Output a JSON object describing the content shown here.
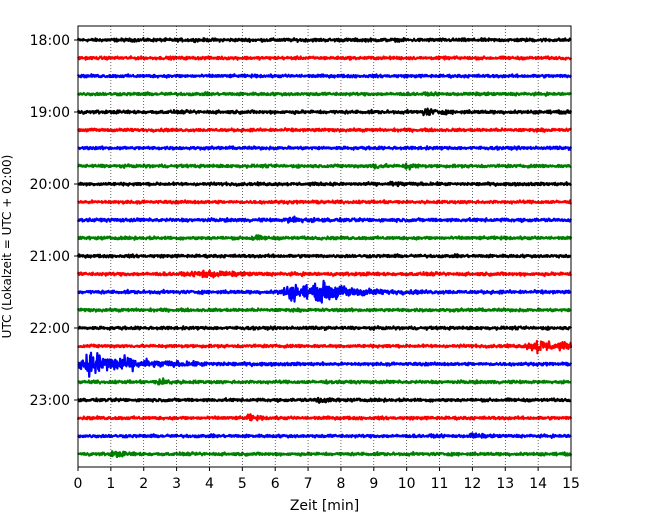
{
  "chart_data": {
    "type": "line",
    "title": "",
    "xlabel": "Zeit  [min]",
    "ylabel": "UTC (Lokalzeit = UTC + 02:00)",
    "xlim": [
      0,
      15
    ],
    "x_ticks": [
      "0",
      "1",
      "2",
      "3",
      "4",
      "5",
      "6",
      "7",
      "8",
      "9",
      "10",
      "11",
      "12",
      "13",
      "14",
      "15"
    ],
    "y_ticks": [
      "18:00",
      "19:00",
      "20:00",
      "21:00",
      "22:00",
      "23:00"
    ],
    "grid": "vertical dotted",
    "trace_interval_min": 15,
    "color_cycle": [
      "#000000",
      "#ff0000",
      "#0000ff",
      "#008000"
    ],
    "series": [
      {
        "start": "18:00",
        "amplitude": 0.22,
        "events": []
      },
      {
        "start": "18:15",
        "amplitude": 0.2,
        "events": []
      },
      {
        "start": "18:30",
        "amplitude": 0.2,
        "events": []
      },
      {
        "start": "18:45",
        "amplitude": 0.2,
        "events": []
      },
      {
        "start": "19:00",
        "amplitude": 0.22,
        "events": [
          {
            "t": 10.6,
            "amp": 0.45,
            "dur": 0.3
          }
        ]
      },
      {
        "start": "19:15",
        "amplitude": 0.2,
        "events": []
      },
      {
        "start": "19:30",
        "amplitude": 0.2,
        "events": []
      },
      {
        "start": "19:45",
        "amplitude": 0.2,
        "events": [
          {
            "t": 9.0,
            "amp": 0.4,
            "dur": 0.2
          },
          {
            "t": 10.0,
            "amp": 0.4,
            "dur": 0.2
          }
        ]
      },
      {
        "start": "20:00",
        "amplitude": 0.2,
        "events": [
          {
            "t": 9.6,
            "amp": 0.4,
            "dur": 0.2
          }
        ]
      },
      {
        "start": "20:15",
        "amplitude": 0.2,
        "events": []
      },
      {
        "start": "20:30",
        "amplitude": 0.22,
        "events": [
          {
            "t": 6.5,
            "amp": 0.35,
            "dur": 0.4
          }
        ]
      },
      {
        "start": "20:45",
        "amplitude": 0.2,
        "events": [
          {
            "t": 5.3,
            "amp": 0.4,
            "dur": 0.2
          }
        ]
      },
      {
        "start": "21:00",
        "amplitude": 0.2,
        "events": []
      },
      {
        "start": "21:15",
        "amplitude": 0.22,
        "events": [
          {
            "t": 3.8,
            "amp": 0.5,
            "dur": 0.6
          }
        ]
      },
      {
        "start": "21:30",
        "amplitude": 0.22,
        "events": [
          {
            "t": 6.6,
            "amp": 1.05,
            "dur": 1.0
          },
          {
            "t": 7.5,
            "amp": 0.8,
            "dur": 0.8
          }
        ]
      },
      {
        "start": "21:45",
        "amplitude": 0.2,
        "events": []
      },
      {
        "start": "22:00",
        "amplitude": 0.2,
        "events": []
      },
      {
        "start": "22:15",
        "amplitude": 0.2,
        "events": [
          {
            "t": 14.0,
            "amp": 0.85,
            "dur": 0.8
          }
        ]
      },
      {
        "start": "22:30",
        "amplitude": 0.2,
        "events": [
          {
            "t": 0.5,
            "amp": 1.6,
            "dur": 1.2
          }
        ]
      },
      {
        "start": "22:45",
        "amplitude": 0.2,
        "events": [
          {
            "t": 2.5,
            "amp": 0.4,
            "dur": 0.3
          }
        ]
      },
      {
        "start": "23:00",
        "amplitude": 0.2,
        "events": [
          {
            "t": 7.3,
            "amp": 0.45,
            "dur": 0.2
          }
        ]
      },
      {
        "start": "23:15",
        "amplitude": 0.2,
        "events": [
          {
            "t": 5.2,
            "amp": 0.4,
            "dur": 0.2
          }
        ]
      },
      {
        "start": "23:30",
        "amplitude": 0.2,
        "events": [
          {
            "t": 12.0,
            "amp": 0.35,
            "dur": 0.2
          }
        ]
      },
      {
        "start": "23:45",
        "amplitude": 0.2,
        "events": [
          {
            "t": 1.1,
            "amp": 0.35,
            "dur": 0.3
          }
        ]
      }
    ]
  }
}
